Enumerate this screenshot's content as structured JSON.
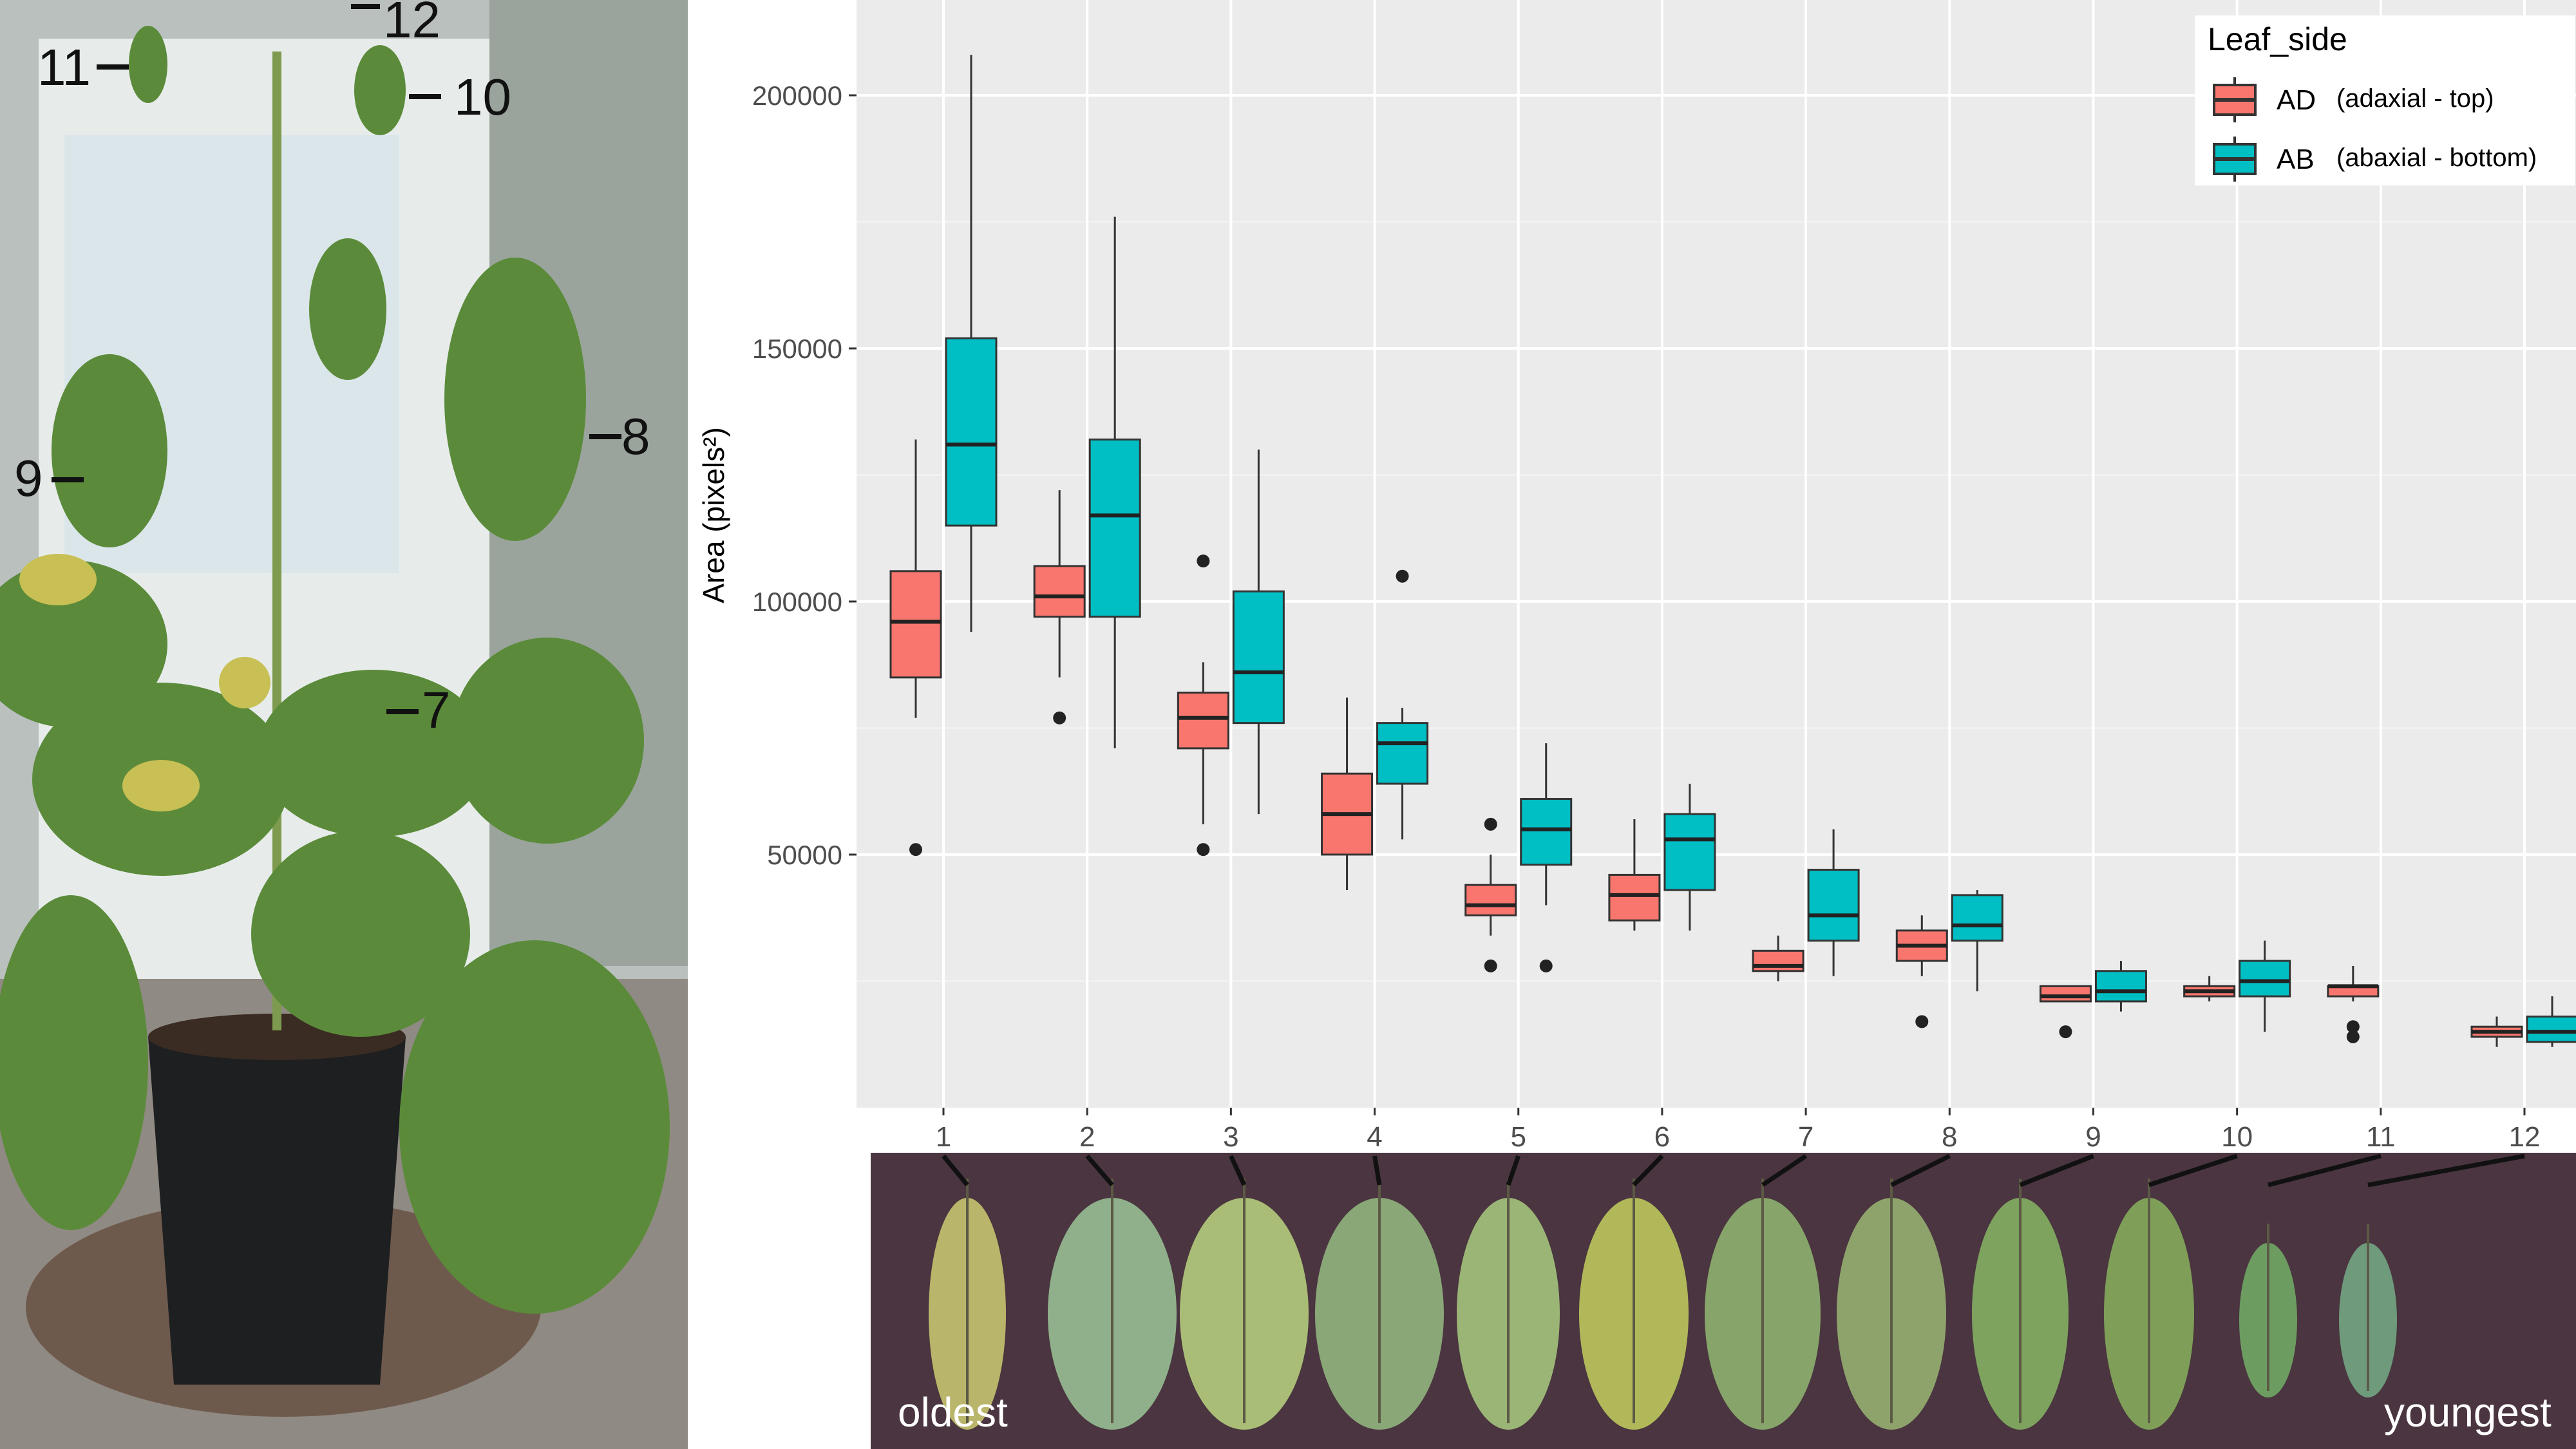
{
  "photo_labels": [
    "11",
    "12",
    "10",
    "9",
    "8",
    "7"
  ],
  "chart_data": {
    "type": "box",
    "x_categories": [
      "1",
      "2",
      "3",
      "4",
      "5",
      "6",
      "7",
      "8",
      "9",
      "10",
      "11",
      "12"
    ],
    "ylabel": "Area (pixels²)",
    "yticks": [
      50000,
      100000,
      150000,
      200000
    ],
    "ytick_labels": [
      "50000",
      "100000",
      "150000",
      "200000"
    ],
    "ylim": [
      0,
      215000
    ],
    "grid": true,
    "legend": {
      "title": "Leaf_side",
      "position": "top-right",
      "entries": [
        {
          "code": "AD",
          "desc": "(adaxial - top)"
        },
        {
          "code": "AB",
          "desc": "(abaxial - bottom)"
        }
      ]
    },
    "series": [
      {
        "name": "AD",
        "color": "#F8766D",
        "boxes": [
          {
            "x": "1",
            "wlo": 77000,
            "q1": 85000,
            "med": 96000,
            "q3": 106000,
            "whi": 132000,
            "out": [
              51000
            ]
          },
          {
            "x": "2",
            "wlo": 85000,
            "q1": 97000,
            "med": 101000,
            "q3": 107000,
            "whi": 122000,
            "out": [
              77000
            ]
          },
          {
            "x": "3",
            "wlo": 56000,
            "q1": 71000,
            "med": 77000,
            "q3": 82000,
            "whi": 88000,
            "out": [
              51000,
              108000
            ]
          },
          {
            "x": "4",
            "wlo": 43000,
            "q1": 50000,
            "med": 58000,
            "q3": 66000,
            "whi": 81000,
            "out": []
          },
          {
            "x": "5",
            "wlo": 34000,
            "q1": 38000,
            "med": 40000,
            "q3": 44000,
            "whi": 50000,
            "out": [
              28000,
              56000
            ]
          },
          {
            "x": "6",
            "wlo": 35000,
            "q1": 37000,
            "med": 42000,
            "q3": 46000,
            "whi": 57000,
            "out": []
          },
          {
            "x": "7",
            "wlo": 25000,
            "q1": 27000,
            "med": 28000,
            "q3": 31000,
            "whi": 34000,
            "out": []
          },
          {
            "x": "8",
            "wlo": 26000,
            "q1": 29000,
            "med": 32000,
            "q3": 35000,
            "whi": 38000,
            "out": [
              17000
            ]
          },
          {
            "x": "9",
            "wlo": 21000,
            "q1": 21000,
            "med": 22000,
            "q3": 24000,
            "whi": 24000,
            "out": [
              15000
            ]
          },
          {
            "x": "10",
            "wlo": 21000,
            "q1": 22000,
            "med": 23000,
            "q3": 24000,
            "whi": 26000,
            "out": []
          },
          {
            "x": "11",
            "wlo": 21000,
            "q1": 22000,
            "med": 24000,
            "q3": 24000,
            "whi": 28000,
            "out": [
              14000,
              16000
            ]
          },
          {
            "x": "12",
            "wlo": 12000,
            "q1": 14000,
            "med": 15000,
            "q3": 16000,
            "whi": 18000,
            "out": []
          }
        ]
      },
      {
        "name": "AB",
        "color": "#00BFC4",
        "boxes": [
          {
            "x": "1",
            "wlo": 94000,
            "q1": 115000,
            "med": 131000,
            "q3": 152000,
            "whi": 208000,
            "out": []
          },
          {
            "x": "2",
            "wlo": 71000,
            "q1": 97000,
            "med": 117000,
            "q3": 132000,
            "whi": 176000,
            "out": []
          },
          {
            "x": "3",
            "wlo": 58000,
            "q1": 76000,
            "med": 86000,
            "q3": 102000,
            "whi": 130000,
            "out": []
          },
          {
            "x": "4",
            "wlo": 53000,
            "q1": 64000,
            "med": 72000,
            "q3": 76000,
            "whi": 79000,
            "out": [
              105000
            ]
          },
          {
            "x": "5",
            "wlo": 40000,
            "q1": 48000,
            "med": 55000,
            "q3": 61000,
            "whi": 72000,
            "out": [
              28000
            ]
          },
          {
            "x": "6",
            "wlo": 35000,
            "q1": 43000,
            "med": 53000,
            "q3": 58000,
            "whi": 64000,
            "out": []
          },
          {
            "x": "7",
            "wlo": 26000,
            "q1": 33000,
            "med": 38000,
            "q3": 47000,
            "whi": 55000,
            "out": []
          },
          {
            "x": "8",
            "wlo": 23000,
            "q1": 33000,
            "med": 36000,
            "q3": 42000,
            "whi": 43000,
            "out": []
          },
          {
            "x": "9",
            "wlo": 19000,
            "q1": 21000,
            "med": 23000,
            "q3": 27000,
            "whi": 29000,
            "out": []
          },
          {
            "x": "10",
            "wlo": 15000,
            "q1": 22000,
            "med": 25000,
            "q3": 29000,
            "whi": 33000,
            "out": []
          },
          {
            "x": "11",
            "wlo": 0,
            "q1": 0,
            "med": 0,
            "q3": 0,
            "whi": 0,
            "out": []
          },
          {
            "x": "12",
            "wlo": 12000,
            "q1": 13000,
            "med": 15000,
            "q3": 18000,
            "whi": 22000,
            "out": []
          }
        ]
      }
    ]
  },
  "strip_labels": {
    "left": "oldest",
    "right": "youngest"
  }
}
